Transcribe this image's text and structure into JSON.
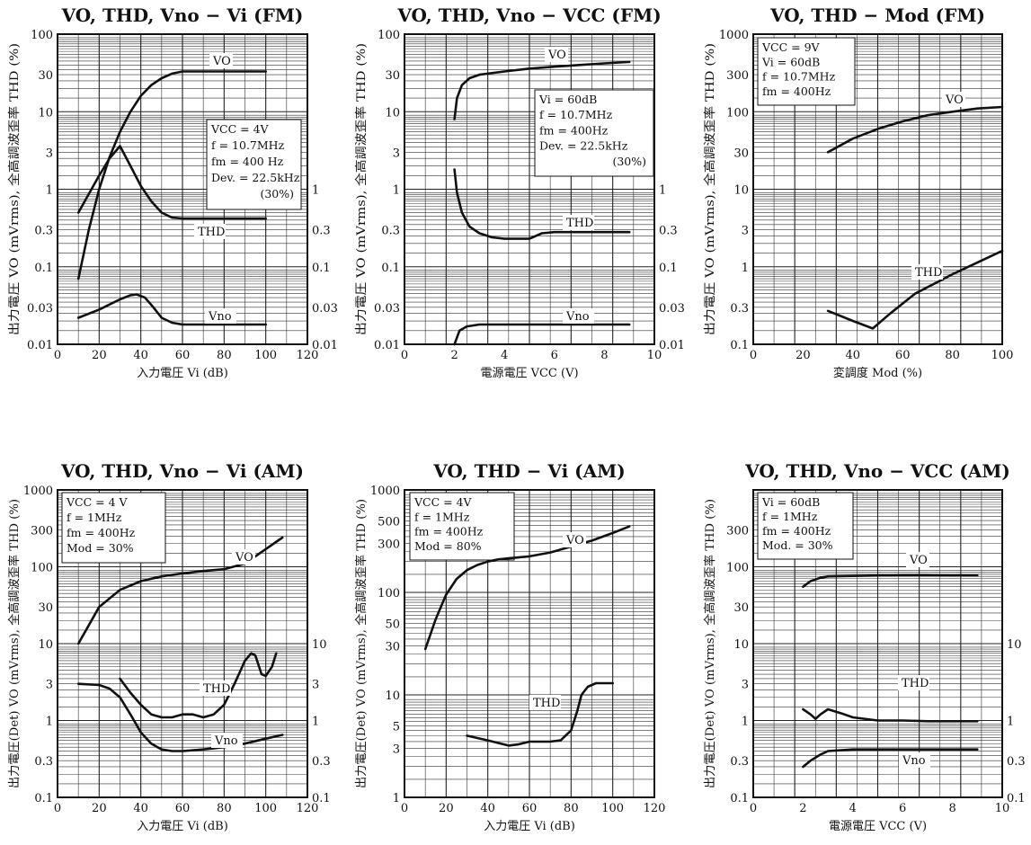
{
  "chart_data": [
    {
      "type": "line",
      "title": "VO, THD, Vno − Vi (FM)",
      "xlabel": "入力電圧 Vi (dB)",
      "ylabel_left": "出力電圧 VO (mVrms), 全高調波歪率 THD (%)",
      "xlim": [
        0,
        120
      ],
      "ylim": [
        0.01,
        100
      ],
      "yscale": "log",
      "xticks": [
        "0",
        "20",
        "40",
        "60",
        "80",
        "100",
        "120"
      ],
      "yticks": [
        "0.01",
        "0.03",
        "0.1",
        "0.3",
        "1",
        "3",
        "10",
        "30",
        "100"
      ],
      "y2ticks": [
        "0.01",
        "0.03",
        "0.1",
        "0.3",
        "1"
      ],
      "notes": [
        "VCC = 4V",
        "f = 10.7MHz",
        "fm = 400 Hz",
        "Dev. = 22.5kHz",
        "(30%)"
      ],
      "series": [
        {
          "name": "VO",
          "x": [
            10,
            15,
            20,
            25,
            30,
            35,
            40,
            45,
            50,
            55,
            60,
            70,
            80,
            100
          ],
          "y": [
            0.07,
            0.3,
            1.0,
            2.6,
            5.5,
            10,
            16,
            22,
            27,
            31,
            33,
            33,
            33,
            33
          ]
        },
        {
          "name": "THD",
          "x": [
            10,
            20,
            25,
            30,
            35,
            40,
            45,
            50,
            55,
            60,
            80,
            100
          ],
          "y": [
            0.5,
            1.5,
            2.5,
            3.6,
            2.0,
            1.1,
            0.7,
            0.5,
            0.43,
            0.42,
            0.42,
            0.42
          ]
        },
        {
          "name": "Vno",
          "x": [
            10,
            20,
            30,
            35,
            38,
            42,
            46,
            50,
            55,
            60,
            80,
            100
          ],
          "y": [
            0.022,
            0.028,
            0.038,
            0.043,
            0.044,
            0.04,
            0.03,
            0.022,
            0.019,
            0.018,
            0.018,
            0.018
          ]
        }
      ]
    },
    {
      "type": "line",
      "title": "VO, THD, Vno − VCC (FM)",
      "xlabel": "電源電圧 VCC (V)",
      "ylabel_left": "出力電圧 VO (mVrms), 全高調波歪率 THD (%)",
      "xlim": [
        0,
        10
      ],
      "ylim": [
        0.01,
        100
      ],
      "yscale": "log",
      "xticks": [
        "0",
        "2",
        "4",
        "6",
        "8",
        "10"
      ],
      "yticks": [
        "0.01",
        "0.03",
        "0.1",
        "0.3",
        "1",
        "3",
        "10",
        "30",
        "100"
      ],
      "y2ticks": [
        "0.01",
        "0.03",
        "0.1",
        "0.3",
        "1"
      ],
      "notes": [
        "Vi = 60dB",
        "f = 10.7MHz",
        "fm = 400Hz",
        "Dev. = 22.5kHz",
        "(30%)"
      ],
      "series": [
        {
          "name": "VO",
          "x": [
            2.0,
            2.1,
            2.3,
            2.6,
            3.0,
            4.0,
            5.0,
            6.0,
            7.0,
            8.0,
            9.0
          ],
          "y": [
            8,
            15,
            22,
            27,
            30,
            33,
            36,
            38,
            40,
            42,
            44
          ]
        },
        {
          "name": "THD",
          "x": [
            2.0,
            2.1,
            2.3,
            2.6,
            3.0,
            3.5,
            4.0,
            5.0,
            5.5,
            6.0,
            7.0,
            9.0
          ],
          "y": [
            1.8,
            0.9,
            0.5,
            0.33,
            0.27,
            0.24,
            0.23,
            0.23,
            0.27,
            0.28,
            0.28,
            0.28
          ]
        },
        {
          "name": "Vno",
          "x": [
            2.0,
            2.2,
            2.5,
            3.0,
            4.0,
            6.0,
            9.0
          ],
          "y": [
            0.01,
            0.015,
            0.017,
            0.018,
            0.018,
            0.018,
            0.018
          ]
        }
      ]
    },
    {
      "type": "line",
      "title": "VO, THD − Mod (FM)",
      "xlabel": "変調度 Mod (%)",
      "ylabel_left": "出力電圧 VO (mVrms), 全高調波歪率 THD (%)",
      "xlim": [
        0,
        100
      ],
      "ylim": [
        0.1,
        1000
      ],
      "yscale": "log",
      "xticks": [
        "0",
        "20",
        "40",
        "60",
        "80",
        "100"
      ],
      "yticks": [
        "0.1",
        "0.3",
        "1",
        "3",
        "10",
        "30",
        "100",
        "300",
        "1000"
      ],
      "notes": [
        "VCC = 9V",
        "Vi = 60dB",
        "f = 10.7MHz",
        "fm = 400Hz"
      ],
      "series": [
        {
          "name": "VO",
          "x": [
            30,
            40,
            50,
            60,
            70,
            80,
            90,
            100
          ],
          "y": [
            30,
            45,
            60,
            75,
            90,
            100,
            110,
            115
          ]
        },
        {
          "name": "THD",
          "x": [
            30,
            40,
            48,
            55,
            65,
            80,
            100
          ],
          "y": [
            0.27,
            0.2,
            0.16,
            0.25,
            0.45,
            0.8,
            1.6
          ]
        }
      ]
    },
    {
      "type": "line",
      "title": "VO, THD, Vno − Vi (AM)",
      "xlabel": "入力電圧 Vi (dB)",
      "ylabel_left": "出力電圧(Det) VO (mVrms), 全高調波歪率 THD (%)",
      "xlim": [
        0,
        120
      ],
      "ylim": [
        0.1,
        1000
      ],
      "yscale": "log",
      "xticks": [
        "0",
        "20",
        "40",
        "60",
        "80",
        "100",
        "120"
      ],
      "yticks": [
        "0.1",
        "0.3",
        "1",
        "3",
        "10",
        "30",
        "100",
        "300",
        "1000"
      ],
      "y2ticks": [
        "0.1",
        "0.3",
        "1",
        "3",
        "10"
      ],
      "notes": [
        "VCC = 4 V",
        "f = 1MHz",
        "fm = 400Hz",
        "Mod = 30%"
      ],
      "series": [
        {
          "name": "VO",
          "x": [
            10,
            20,
            30,
            40,
            50,
            60,
            70,
            80,
            90,
            100,
            108
          ],
          "y": [
            10,
            30,
            50,
            65,
            75,
            82,
            88,
            93,
            110,
            170,
            240
          ]
        },
        {
          "name": "THD",
          "x": [
            30,
            35,
            40,
            45,
            50,
            55,
            60,
            65,
            70,
            75,
            80,
            85,
            90,
            93,
            95,
            98,
            100,
            103,
            105
          ],
          "y": [
            3.5,
            2.3,
            1.6,
            1.2,
            1.1,
            1.1,
            1.2,
            1.2,
            1.1,
            1.2,
            1.6,
            3.0,
            6.0,
            7.5,
            7.0,
            4.0,
            3.8,
            5.0,
            7.5
          ]
        },
        {
          "name": "Vno",
          "x": [
            10,
            20,
            25,
            30,
            35,
            40,
            45,
            50,
            55,
            60,
            70,
            80,
            90,
            100,
            108
          ],
          "y": [
            3.0,
            2.9,
            2.6,
            2.0,
            1.2,
            0.7,
            0.5,
            0.42,
            0.4,
            0.4,
            0.42,
            0.45,
            0.5,
            0.58,
            0.65
          ]
        }
      ]
    },
    {
      "type": "line",
      "title": "VO, THD − Vi (AM)",
      "xlabel": "入力電圧 Vi (dB)",
      "ylabel_left": "出力電圧(Det) VO (mVrms), 全高調波歪率 THD (%)",
      "xlim": [
        0,
        120
      ],
      "ylim": [
        1,
        1000
      ],
      "yscale": "log",
      "xticks": [
        "0",
        "20",
        "40",
        "60",
        "80",
        "100",
        "120"
      ],
      "yticks": [
        "1",
        "3",
        "5",
        "10",
        "30",
        "50",
        "100",
        "300",
        "500",
        "1000"
      ],
      "notes": [
        "VCC = 4V",
        "f = 1MHz",
        "fm = 400Hz",
        "Mod = 80%"
      ],
      "series": [
        {
          "name": "VO",
          "x": [
            10,
            15,
            20,
            25,
            30,
            35,
            40,
            45,
            50,
            60,
            70,
            80,
            90,
            100,
            108
          ],
          "y": [
            28,
            55,
            95,
            135,
            165,
            185,
            200,
            210,
            215,
            225,
            245,
            280,
            320,
            380,
            440
          ]
        },
        {
          "name": "THD",
          "x": [
            30,
            40,
            50,
            55,
            60,
            65,
            70,
            75,
            80,
            83,
            85,
            88,
            92,
            100
          ],
          "y": [
            4.0,
            3.6,
            3.2,
            3.3,
            3.5,
            3.5,
            3.5,
            3.6,
            4.5,
            7.0,
            10,
            12,
            13,
            13
          ]
        }
      ]
    },
    {
      "type": "line",
      "title": "VO, THD, Vno − VCC (AM)",
      "xlabel": "電源電圧 VCC (V)",
      "ylabel_left": "出力電圧(Det) VO (mVrms), 全高調波歪率 THD (%)",
      "xlim": [
        0,
        10
      ],
      "ylim": [
        0.1,
        1000
      ],
      "yscale": "log",
      "xticks": [
        "0",
        "2",
        "4",
        "6",
        "8",
        "10"
      ],
      "yticks": [
        "0.1",
        "0.3",
        "1",
        "3",
        "10",
        "30",
        "100",
        "300"
      ],
      "y2ticks": [
        "0.1",
        "0.3",
        "1",
        "10"
      ],
      "notes": [
        "Vi = 60dB",
        "f = 1MHz",
        "fm = 400Hz",
        "Mod. = 30%"
      ],
      "series": [
        {
          "name": "VO",
          "x": [
            2.0,
            2.3,
            2.7,
            3.0,
            4.0,
            5.0,
            6.0,
            7.0,
            8.0,
            9.0
          ],
          "y": [
            55,
            65,
            72,
            75,
            76,
            77,
            78,
            78,
            77,
            77
          ]
        },
        {
          "name": "THD",
          "x": [
            2.0,
            2.3,
            2.5,
            2.7,
            3.0,
            3.5,
            4.0,
            5.0,
            6.0,
            7.0,
            9.0
          ],
          "y": [
            1.4,
            1.2,
            1.05,
            1.2,
            1.4,
            1.25,
            1.1,
            1.0,
            1.0,
            0.98,
            0.98
          ]
        },
        {
          "name": "Vno",
          "x": [
            2.0,
            2.3,
            2.7,
            3.0,
            4.0,
            5.0,
            6.0,
            7.0,
            9.0
          ],
          "y": [
            0.25,
            0.3,
            0.36,
            0.4,
            0.42,
            0.42,
            0.42,
            0.42,
            0.42
          ]
        }
      ]
    }
  ]
}
